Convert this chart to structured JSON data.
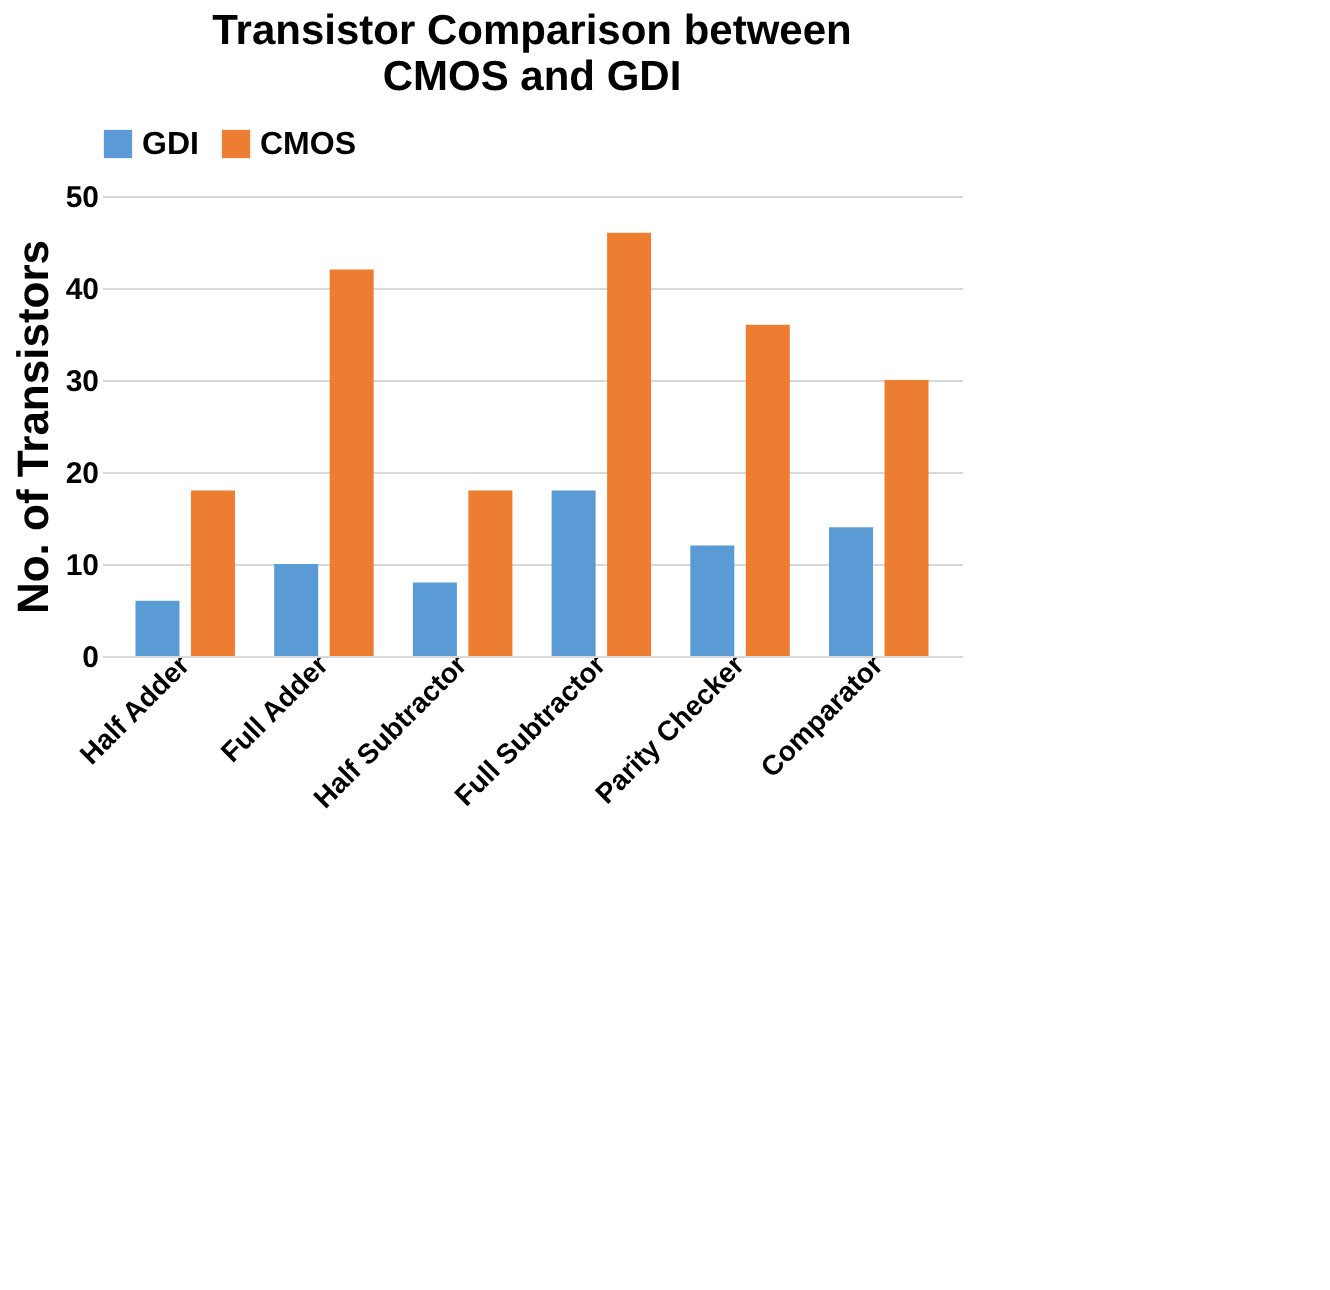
{
  "chart_data": {
    "type": "bar",
    "title": "Transistor Comparison between\nCMOS and GDI",
    "ylabel": "No. of Transistors",
    "categories": [
      "Half Adder",
      "Full Adder",
      "Half Subtractor",
      "Full Subtractor",
      "Parity Checker",
      "Comparator"
    ],
    "series": [
      {
        "name": "GDI",
        "color": "#5b9bd5",
        "values": [
          6,
          10,
          8,
          18,
          12,
          14
        ]
      },
      {
        "name": "CMOS",
        "color": "#ed7d31",
        "values": [
          18,
          42,
          18,
          46,
          36,
          30
        ]
      }
    ],
    "ylim": [
      0,
      50
    ],
    "yticks": [
      0,
      10,
      20,
      30,
      40,
      50
    ],
    "grid": "y",
    "legend": "top"
  }
}
